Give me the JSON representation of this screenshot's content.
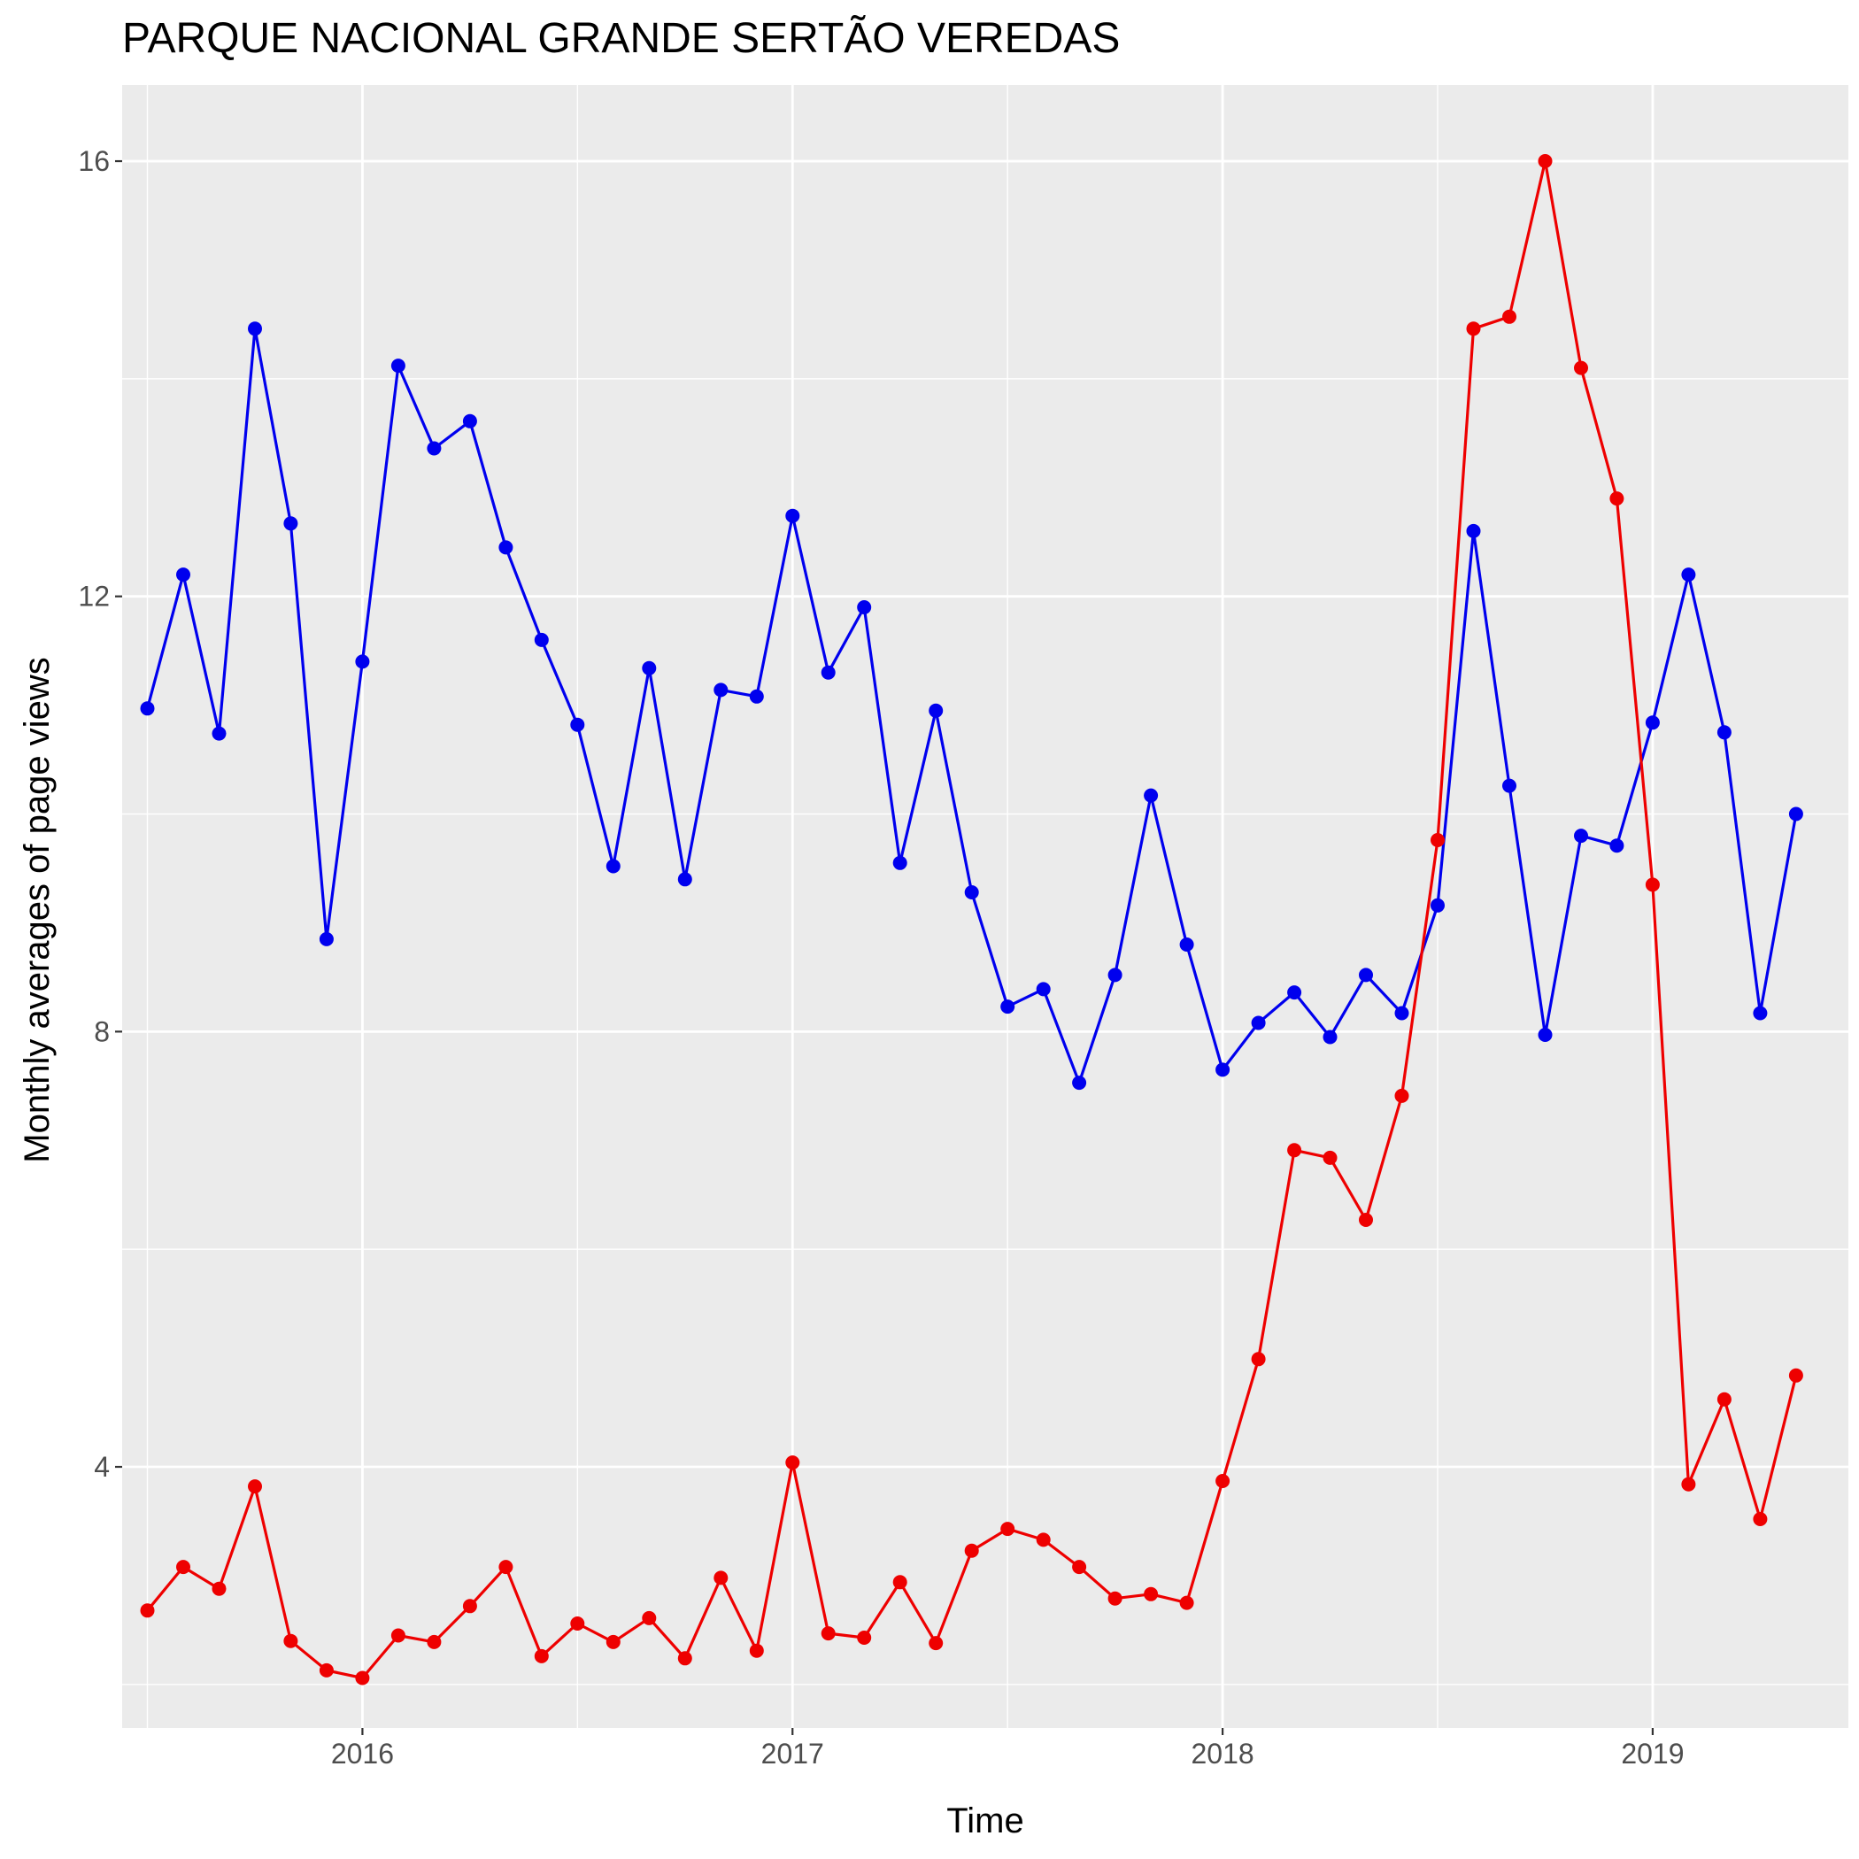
{
  "chart_data": {
    "type": "line",
    "title": "PARQUE NACIONAL GRANDE SERTÃO VEREDAS",
    "xlabel": "Time",
    "ylabel": "Monthly averages of page views",
    "x_ticks": [
      "2016",
      "2017",
      "2018",
      "2019"
    ],
    "y_ticks": [
      "4",
      "8",
      "12",
      "16"
    ],
    "ylim": [
      1.6,
      16.7
    ],
    "xlim": [
      "2015-06-10",
      "2019-06-15"
    ],
    "grid": true,
    "legend": "none",
    "colors": {
      "panel": "#EBEBEB",
      "grid": "#FFFFFF",
      "series_blue": "#0000EE",
      "series_red": "#EE0000"
    },
    "x": [
      "2015-07",
      "2015-08",
      "2015-09",
      "2015-10",
      "2015-11",
      "2015-12",
      "2016-01",
      "2016-02",
      "2016-03",
      "2016-04",
      "2016-05",
      "2016-06",
      "2016-07",
      "2016-08",
      "2016-09",
      "2016-10",
      "2016-11",
      "2016-12",
      "2017-01",
      "2017-02",
      "2017-03",
      "2017-04",
      "2017-05",
      "2017-06",
      "2017-07",
      "2017-08",
      "2017-09",
      "2017-10",
      "2017-11",
      "2017-12",
      "2018-01",
      "2018-02",
      "2018-03",
      "2018-04",
      "2018-05",
      "2018-06",
      "2018-07",
      "2018-08",
      "2018-09",
      "2018-10",
      "2018-11",
      "2018-12",
      "2019-01",
      "2019-02",
      "2019-03",
      "2019-04",
      "2019-05"
    ],
    "series": [
      {
        "color": "#0000EE",
        "values": [
          10.97,
          12.2,
          10.74,
          14.46,
          12.67,
          8.85,
          11.4,
          14.12,
          13.36,
          13.61,
          12.45,
          11.6,
          10.82,
          9.52,
          11.34,
          9.4,
          11.14,
          11.08,
          12.74,
          11.3,
          11.9,
          9.55,
          10.95,
          9.28,
          8.23,
          8.39,
          7.53,
          8.52,
          10.17,
          8.8,
          7.65,
          8.08,
          8.36,
          7.95,
          8.52,
          8.17,
          9.16,
          12.6,
          10.26,
          7.97,
          9.8,
          9.71,
          10.84,
          12.2,
          10.75,
          8.17,
          10.0
        ]
      },
      {
        "color": "#EE0000",
        "values": [
          2.68,
          3.08,
          2.88,
          3.82,
          2.4,
          2.13,
          2.06,
          2.45,
          2.39,
          2.72,
          3.08,
          2.26,
          2.56,
          2.39,
          2.61,
          2.24,
          2.98,
          2.31,
          4.04,
          2.47,
          2.43,
          2.94,
          2.38,
          3.23,
          3.43,
          3.33,
          3.08,
          2.79,
          2.83,
          2.75,
          3.87,
          4.99,
          6.91,
          6.84,
          6.27,
          7.41,
          9.76,
          14.46,
          14.57,
          16.0,
          14.1,
          12.9,
          9.35,
          3.84,
          4.62,
          3.52,
          4.84
        ]
      }
    ]
  }
}
